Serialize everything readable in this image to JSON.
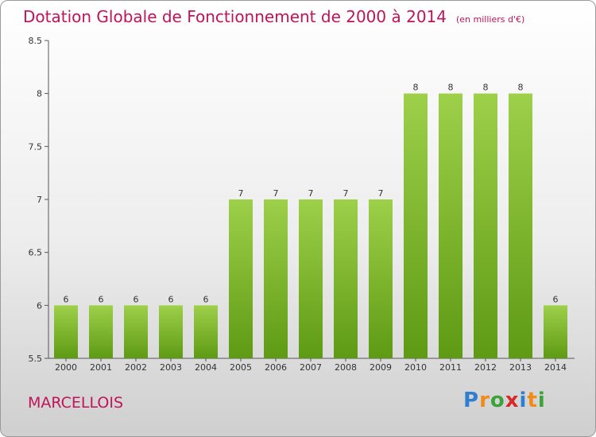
{
  "title": "Dotation Globale de Fonctionnement de 2000 à 2014",
  "unit": "(en milliers d'€)",
  "commune": "MARCELLOIS",
  "logo": {
    "letters": [
      "P",
      "r",
      "o",
      "x",
      "i",
      "t",
      "i"
    ],
    "colors": [
      "#2f7fd1",
      "#f08a1a",
      "#3aa43a",
      "#d62b2b",
      "#2f7fd1",
      "#f08a1a",
      "#3aa43a"
    ]
  },
  "colors": {
    "bar_light": "#9ed04a",
    "bar_dark": "#5e9a14",
    "title": "#c0135a"
  },
  "chart_data": {
    "type": "bar",
    "categories": [
      "2000",
      "2001",
      "2002",
      "2003",
      "2004",
      "2005",
      "2006",
      "2007",
      "2008",
      "2009",
      "2010",
      "2011",
      "2012",
      "2013",
      "2014"
    ],
    "values": [
      6,
      6,
      6,
      6,
      6,
      7,
      7,
      7,
      7,
      7,
      8,
      8,
      8,
      8,
      6
    ],
    "ylim": [
      5.5,
      8.5
    ],
    "yticks": [
      5.5,
      6,
      6.5,
      7,
      7.5,
      8,
      8.5
    ],
    "grid": false
  }
}
